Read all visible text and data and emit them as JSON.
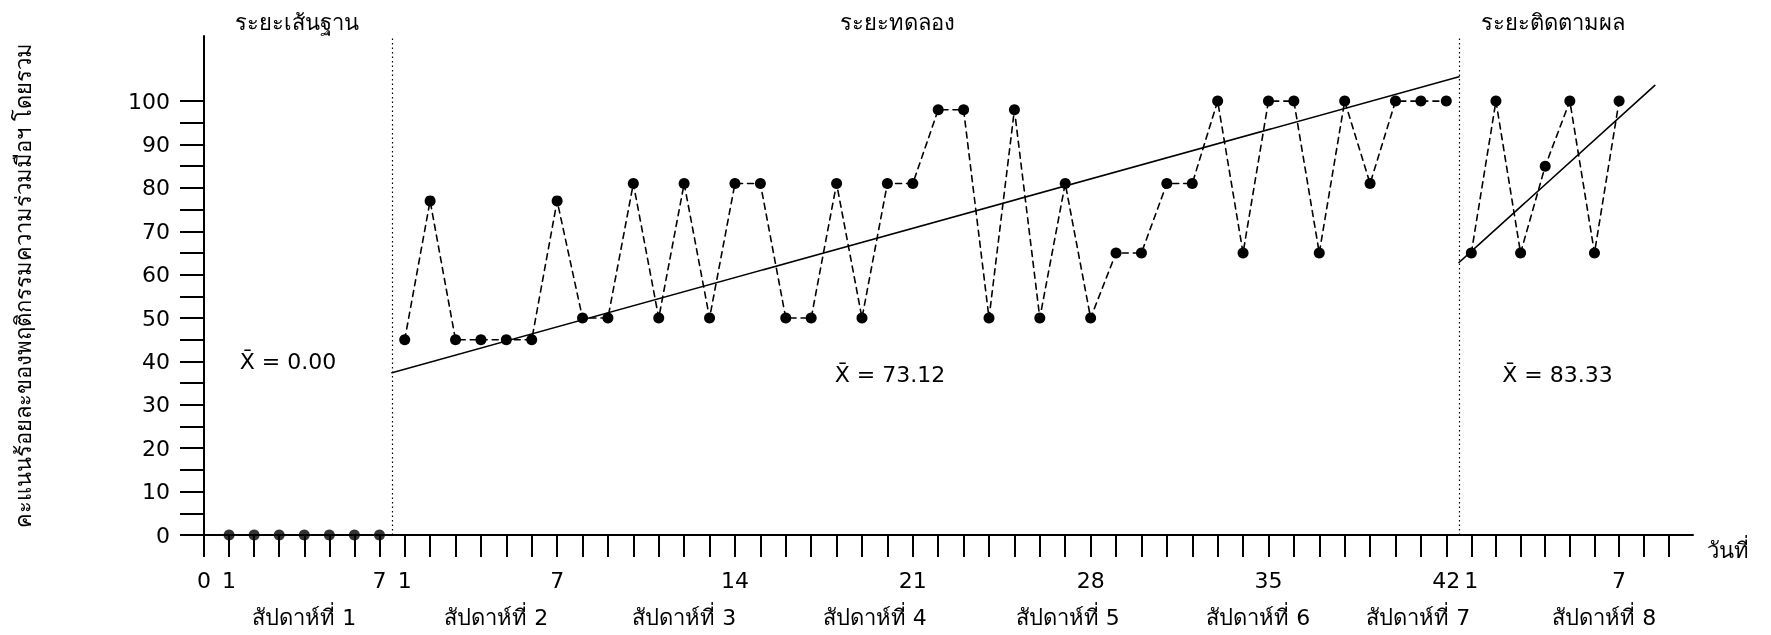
{
  "chart_data": [
    {
      "type": "scatter",
      "ylabel": "คะแนนร้อยละของพฤติกรรมความร่วมมือฯ โดยรวม",
      "annotations": [
        "ระยะเส้นฐาน",
        "X̄ = 0.00",
        "สัปดาห์ที่ 1"
      ],
      "series": [
        {
          "color": "#000000",
          "x": [
            1,
            2,
            3,
            4,
            5,
            6,
            7
          ],
          "values": [
            0,
            0,
            0,
            0,
            0,
            0,
            0
          ]
        }
      ],
      "marker": "circle",
      "xlim": [
        0,
        7.5
      ],
      "xticks": [
        0,
        1,
        7
      ],
      "ylim": [
        0,
        115
      ],
      "yticks": [
        0,
        10,
        20,
        30,
        40,
        50,
        60,
        70,
        80,
        90,
        100
      ],
      "ref_lines": [
        {
          "axis": "x",
          "value": 7.5,
          "line_style": "dotted",
          "color": "#000000"
        }
      ]
    },
    {
      "type": "line",
      "annotations": [
        "ระยะทดลอง",
        "X̄ = 73.12",
        "สัปดาห์ที่ 2",
        "สัปดาห์ที่ 3",
        "สัปดาห์ที่ 4",
        "สัปดาห์ที่ 5",
        "สัปดาห์ที่ 6",
        "สัปดาห์ที่ 7"
      ],
      "series": [
        {
          "color": "#000000",
          "x": [
            1,
            2,
            3,
            4,
            5,
            6,
            7,
            8,
            9,
            10,
            11,
            12,
            13,
            14,
            15,
            16,
            17,
            18,
            19,
            20,
            21,
            22,
            23,
            24,
            25,
            26,
            27,
            28,
            29,
            30,
            31,
            32,
            33,
            34,
            35,
            36,
            37,
            38,
            39,
            40,
            41,
            42
          ],
          "values": [
            45,
            77,
            45,
            45,
            45,
            45,
            77,
            50,
            50,
            81,
            50,
            81,
            50,
            81,
            81,
            50,
            50,
            81,
            50,
            81,
            81,
            98,
            98,
            50,
            98,
            50,
            81,
            50,
            65,
            65,
            81,
            81,
            100,
            65,
            100,
            100,
            65,
            100,
            81,
            100,
            100,
            100
          ]
        },
        {
          "color": "#000000",
          "x": [
            0.5,
            42.5
          ],
          "values": [
            37.4,
            105.6
          ],
          "line_style": "solid",
          "marker": "none"
        }
      ],
      "marker": "circle",
      "line_style": "dashed",
      "xlim": [
        0.5,
        42.5
      ],
      "xticks": [
        1,
        7,
        14,
        21,
        28,
        35,
        42
      ],
      "ylim": [
        0,
        115
      ],
      "tick_labels": "x",
      "ref_lines": [
        {
          "axis": "x",
          "value": 42.5,
          "line_style": "dotted",
          "color": "#000000"
        }
      ]
    },
    {
      "type": "line",
      "xlabel": "วันที่",
      "annotations": [
        "ระยะติดตามผล",
        "X̄ = 83.33",
        "สัปดาห์ที่ 8"
      ],
      "series": [
        {
          "color": "#000000",
          "x": [
            1,
            2,
            3,
            4,
            5,
            6,
            7
          ],
          "values": [
            65,
            100,
            65,
            85,
            100,
            65,
            100
          ]
        },
        {
          "color": "#000000",
          "x": [
            0.5,
            8.45
          ],
          "values": [
            62.8,
            103.6
          ],
          "line_style": "solid",
          "marker": "none"
        }
      ],
      "marker": "circle",
      "line_style": "dashed",
      "xlim": [
        0.5,
        10
      ],
      "xticks": [
        1,
        7
      ],
      "ylim": [
        0,
        115
      ],
      "tick_labels": "x"
    }
  ]
}
